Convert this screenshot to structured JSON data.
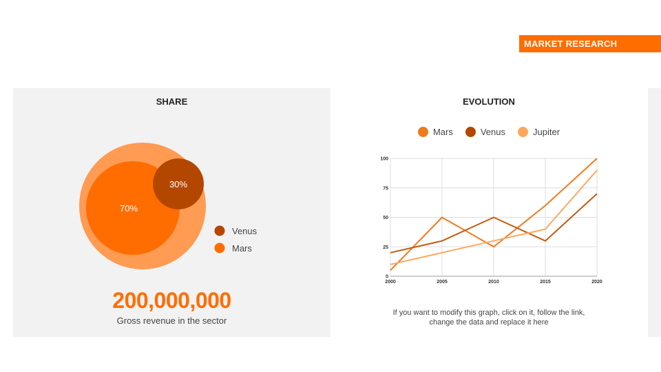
{
  "header": {
    "tag_label": "MARKET RESEARCH"
  },
  "colors": {
    "mars": "#ff6d00",
    "venus": "#b34700",
    "outer": "#ff9b53",
    "jupiter": "#ffa75e",
    "mars_line": "#f07a1c",
    "venus_line": "#c55a11"
  },
  "share": {
    "title": "SHARE",
    "venus_pct": "30%",
    "mars_pct": "70%",
    "legend": [
      {
        "label": "Venus",
        "color": "#b34700"
      },
      {
        "label": "Mars",
        "color": "#ff6d00"
      }
    ],
    "big_number": "200,000,000",
    "caption": "Gross revenue in the sector"
  },
  "evolution": {
    "title": "EVOLUTION",
    "note": "If you want to modify this graph, click on it, follow the link, change the data and replace it here"
  },
  "chart_data": {
    "type": "line",
    "title": "EVOLUTION",
    "x": [
      2000,
      2005,
      2010,
      2015,
      2020
    ],
    "x_tick_labels": [
      "2000",
      "2005",
      "2010",
      "2015",
      "2020"
    ],
    "y_tick_labels": [
      "0",
      "25",
      "50",
      "75",
      "100"
    ],
    "ylim": [
      0,
      100
    ],
    "grid": true,
    "legend_position": "top-center",
    "series": [
      {
        "name": "Mars",
        "color": "#f07a1c",
        "values": [
          5,
          50,
          25,
          60,
          100
        ]
      },
      {
        "name": "Venus",
        "color": "#c55a11",
        "values": [
          20,
          30,
          50,
          30,
          70
        ]
      },
      {
        "name": "Jupiter",
        "color": "#ffa75e",
        "values": [
          10,
          20,
          30,
          40,
          90
        ]
      }
    ]
  }
}
